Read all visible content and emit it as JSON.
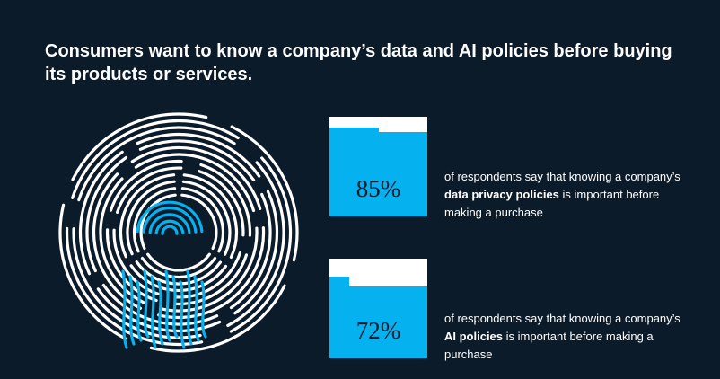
{
  "title": "Consumers want to know a company’s data and AI policies before buying its products or services.",
  "colors": {
    "background": "#0c1b2a",
    "accent": "#05b1ef",
    "text": "#ffffff",
    "fingerprint_line": "#ffffff",
    "fingerprint_highlight": "#05b1ef"
  },
  "icons": [
    "fingerprint-icon"
  ],
  "chart_data": {
    "type": "bar",
    "title": "Consumers want to know a company’s data and AI policies before buying its products or services.",
    "unit": "%",
    "ylim": [
      0,
      100
    ],
    "categories": [
      "data privacy policies",
      "AI policies"
    ],
    "values": [
      85,
      72
    ],
    "labels": [
      "85%",
      "72%"
    ]
  },
  "stats": [
    {
      "value": 85,
      "label": "85%",
      "text_before": "of respondents say that knowing a company’s ",
      "text_bold": "data privacy policies",
      "text_after": " is important before making a purchase"
    },
    {
      "value": 72,
      "label": "72%",
      "text_before": "of respondents say that knowing a company’s ",
      "text_bold": "AI policies",
      "text_after": " is important before making a purchase"
    }
  ]
}
